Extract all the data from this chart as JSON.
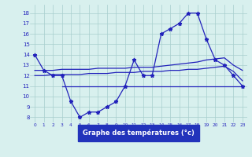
{
  "hours": [
    0,
    1,
    2,
    3,
    4,
    5,
    6,
    7,
    8,
    9,
    10,
    11,
    12,
    13,
    14,
    15,
    16,
    17,
    18,
    19,
    20,
    21,
    22,
    23
  ],
  "temp_curve": [
    14,
    12.5,
    12,
    12,
    9.5,
    8,
    8.5,
    8.5,
    9,
    9.5,
    11,
    13.5,
    12,
    12,
    16,
    16.5,
    17,
    18,
    18,
    15.5,
    13.5,
    13,
    12,
    11
  ],
  "trend1": [
    12.5,
    12.5,
    12.5,
    12.6,
    12.6,
    12.6,
    12.6,
    12.7,
    12.7,
    12.7,
    12.7,
    12.8,
    12.8,
    12.8,
    12.9,
    13.0,
    13.1,
    13.2,
    13.3,
    13.5,
    13.6,
    13.7,
    13.0,
    12.5
  ],
  "trend2": [
    12.0,
    12.0,
    12.1,
    12.1,
    12.1,
    12.1,
    12.2,
    12.2,
    12.2,
    12.3,
    12.3,
    12.3,
    12.4,
    12.4,
    12.4,
    12.5,
    12.5,
    12.6,
    12.6,
    12.7,
    12.8,
    12.9,
    12.4,
    11.5
  ],
  "flat_line_x": [
    3,
    23
  ],
  "flat_line_y": [
    11,
    11
  ],
  "line_color": "#2222bb",
  "bg_color": "#d8f0ee",
  "grid_color": "#a8cece",
  "xlabel": "Graphe des températures (°c)",
  "yticks": [
    8,
    9,
    10,
    11,
    12,
    13,
    14,
    15,
    16,
    17,
    18
  ],
  "xticks": [
    0,
    1,
    2,
    3,
    4,
    5,
    6,
    7,
    8,
    9,
    10,
    11,
    12,
    13,
    14,
    15,
    16,
    17,
    18,
    19,
    20,
    21,
    22,
    23
  ],
  "ylim": [
    7.5,
    18.8
  ],
  "xlim": [
    -0.5,
    23.5
  ]
}
